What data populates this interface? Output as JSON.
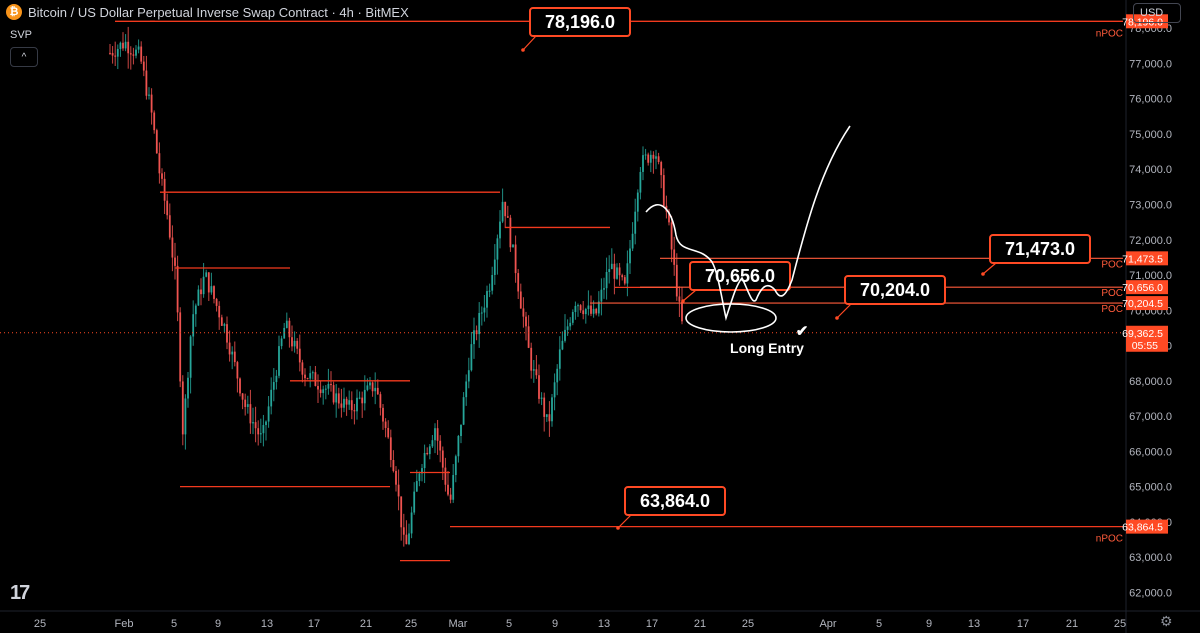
{
  "header": {
    "title": "Bitcoin / US Dollar Perpetual Inverse Swap Contract · 4h · BitMEX",
    "indicator": "SVP",
    "currency": "USD",
    "btc_symbol": "₿",
    "collapse_symbol": "^",
    "logo": "17",
    "settings_symbol": "⚙"
  },
  "chart_data": {
    "type": "candlestick",
    "y_axis": {
      "min": 61500,
      "max": 78800,
      "ticks": [
        62000,
        63000,
        64000,
        65000,
        66000,
        67000,
        68000,
        69000,
        70000,
        71000,
        72000,
        73000,
        74000,
        75000,
        76000,
        77000,
        78000
      ],
      "tick_labels": [
        "62,000.0",
        "63,000.0",
        "64,000.0",
        "65,000.0",
        "66,000.0",
        "67,000.0",
        "68,000.0",
        "69,000.0",
        "70,000.0",
        "71,000.0",
        "72,000.0",
        "73,000.0",
        "74,000.0",
        "75,000.0",
        "76,000.0",
        "77,000.0",
        "78,000.0"
      ]
    },
    "x_axis": {
      "tick_labels": [
        "25",
        "Feb",
        "5",
        "9",
        "13",
        "17",
        "21",
        "25",
        "Mar",
        "5",
        "9",
        "13",
        "17",
        "21",
        "25",
        "Apr",
        "5",
        "9",
        "13",
        "17",
        "21",
        "25"
      ]
    },
    "price_labels": [
      {
        "text": "78,196.0",
        "value": 78196.0,
        "tag": "nPOC"
      },
      {
        "text": "71,473.5",
        "value": 71473.5,
        "tag": "POC"
      },
      {
        "text": "70,656.0",
        "value": 70656.0,
        "tag": "POC"
      },
      {
        "text": "70,204.5",
        "value": 70204.5,
        "tag": "POC"
      },
      {
        "text": "69,362.5",
        "value": 69362.5,
        "tag": "",
        "countdown": "05:55"
      },
      {
        "text": "63,864.5",
        "value": 63864.5,
        "tag": "nPOC"
      }
    ],
    "annotations": [
      {
        "text": "78,196.0",
        "value": 78196.0
      },
      {
        "text": "71,473.0",
        "value": 71473.0
      },
      {
        "text": "70,656.0",
        "value": 70656.0
      },
      {
        "text": "70,204.0",
        "value": 70204.0
      },
      {
        "text": "63,864.0",
        "value": 63864.0
      }
    ],
    "entry_label": "Long Entry",
    "entry_mark": "✔",
    "last_price": 69362.5,
    "colors": {
      "up": "#26a69a",
      "down": "#ef5350",
      "level": "#f23a1e",
      "poc": "#ff5b3b",
      "accent": "#ff4a24"
    }
  }
}
